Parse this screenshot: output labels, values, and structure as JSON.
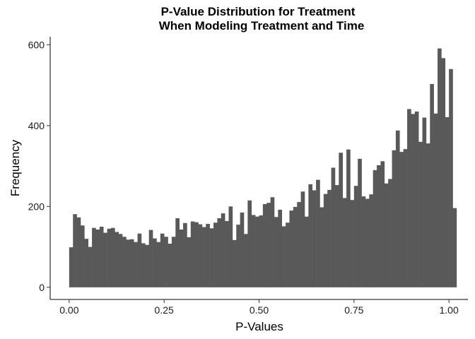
{
  "chart_data": {
    "type": "bar",
    "title_line1": "P-Value Distribution for Treatment",
    "title_line2": "When Modeling Treatment and Time",
    "xlabel": "P-Values",
    "ylabel": "Frequency",
    "xlim": [
      -0.05,
      1.05
    ],
    "ylim": [
      -30,
      620
    ],
    "x_ticks": [
      0,
      0.25,
      0.5,
      0.75,
      1
    ],
    "x_tick_labels": [
      "0.00",
      "0.25",
      "0.50",
      "0.75",
      "1.00"
    ],
    "y_ticks": [
      0,
      200,
      400,
      600
    ],
    "y_tick_labels": [
      "0",
      "200",
      "400",
      "600"
    ],
    "bin_start": 0,
    "bin_width": 0.01,
    "bar_color": "#595959",
    "grid": false,
    "values": [
      99,
      181,
      173,
      153,
      120,
      100,
      147,
      143,
      150,
      135,
      145,
      147,
      137,
      132,
      125,
      118,
      119,
      112,
      133,
      109,
      105,
      142,
      121,
      112,
      133,
      125,
      108,
      125,
      171,
      143,
      159,
      124,
      163,
      161,
      156,
      149,
      157,
      146,
      160,
      171,
      183,
      164,
      200,
      117,
      155,
      185,
      132,
      215,
      179,
      175,
      178,
      206,
      209,
      223,
      174,
      192,
      151,
      160,
      190,
      199,
      211,
      237,
      175,
      255,
      240,
      266,
      198,
      231,
      241,
      296,
      253,
      333,
      221,
      341,
      216,
      251,
      318,
      225,
      219,
      230,
      290,
      302,
      312,
      257,
      268,
      339,
      388,
      335,
      342,
      441,
      429,
      435,
      360,
      420,
      356,
      503,
      430,
      591,
      567,
      421,
      540,
      196
    ]
  }
}
